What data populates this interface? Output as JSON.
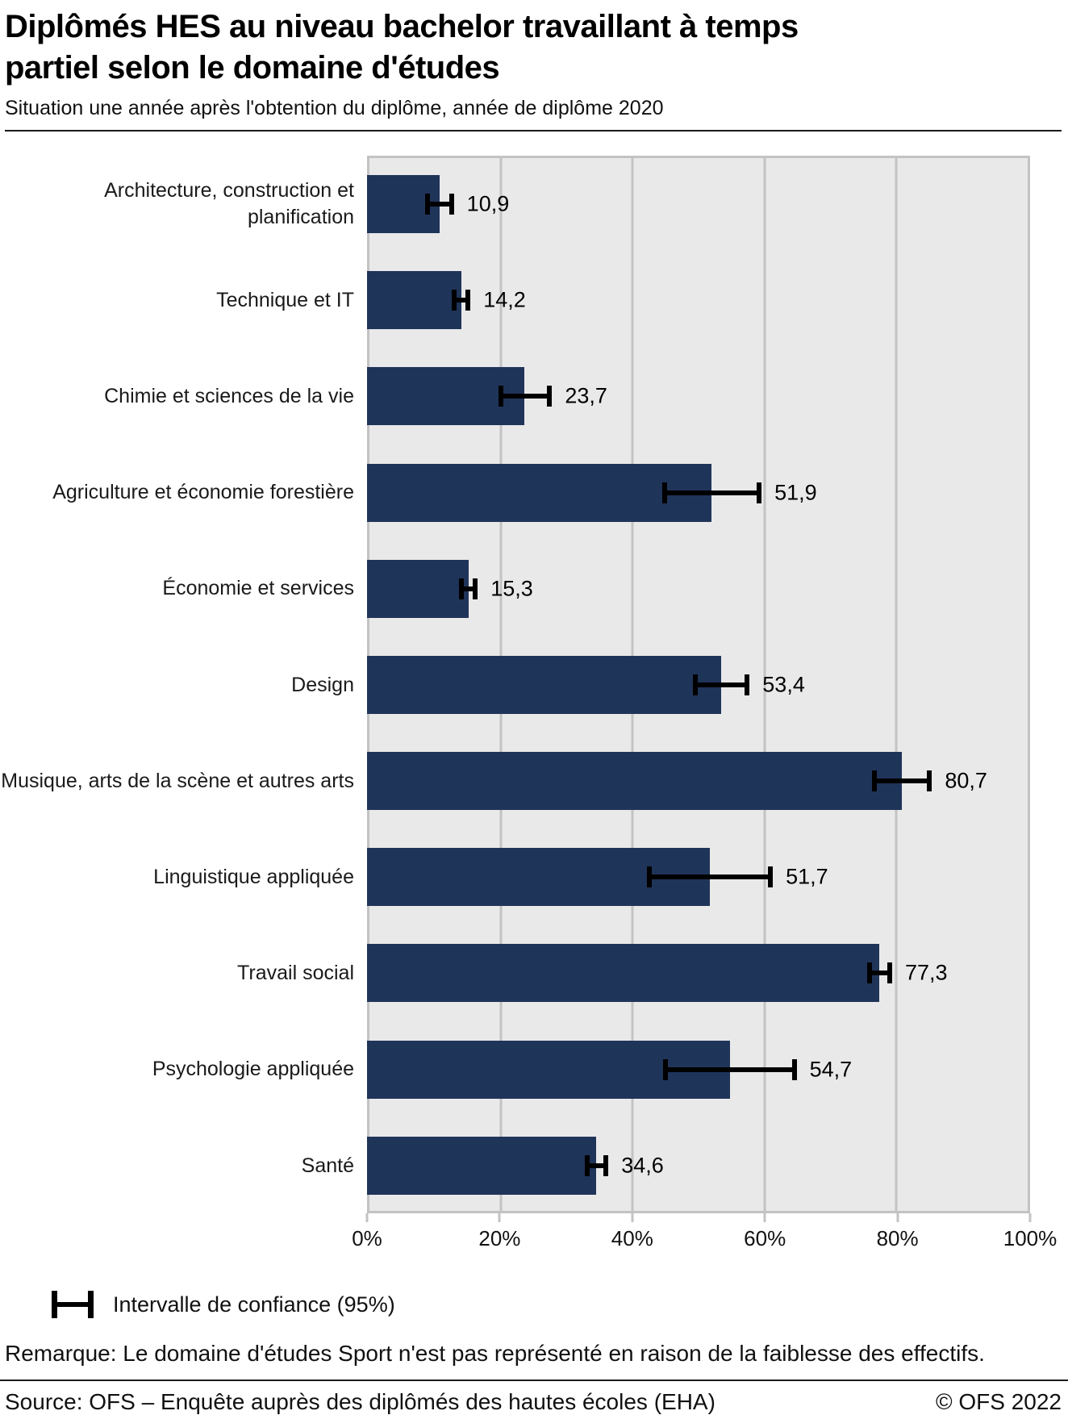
{
  "chart_data": {
    "type": "bar",
    "orientation": "horizontal",
    "title": "Diplômés HES au niveau bachelor travaillant à temps partiel selon le domaine d'études",
    "subtitle": "Situation une année après l'obtention du diplôme, année de diplôme 2020",
    "categories": [
      "Architecture, construction et planification",
      "Technique et IT",
      "Chimie et sciences de la vie",
      "Agriculture et économie forestière",
      "Économie et services",
      "Design",
      "Musique, arts de la scène et autres arts",
      "Linguistique appliquée",
      "Travail social",
      "Psychologie appliquée",
      "Santé"
    ],
    "values": [
      10.9,
      14.2,
      23.7,
      51.9,
      15.3,
      53.4,
      80.7,
      51.7,
      77.3,
      54.7,
      34.6
    ],
    "value_labels": [
      "10,9",
      "14,2",
      "23,7",
      "51,9",
      "15,3",
      "53,4",
      "80,7",
      "51,7",
      "77,3",
      "54,7",
      "34,6"
    ],
    "ci_low": [
      8.7,
      12.8,
      19.8,
      44.5,
      13.9,
      49.1,
      76.2,
      42.2,
      75.4,
      44.6,
      32.8
    ],
    "ci_high": [
      13.1,
      15.6,
      27.9,
      59.5,
      16.7,
      57.7,
      85.2,
      61.2,
      79.2,
      64.8,
      36.4
    ],
    "xlabel": "",
    "ylabel": "",
    "xlim": [
      0,
      100
    ],
    "x_ticks": [
      0,
      20,
      40,
      60,
      80,
      100
    ],
    "x_tick_labels": [
      "0%",
      "20%",
      "40%",
      "60%",
      "80%",
      "100%"
    ],
    "grid": "vertical",
    "legend_position": "bottom-left",
    "legend_label": "Intervalle de confiance (95%)",
    "note": "Remarque: Le domaine d'études Sport n'est pas représenté en raison de la faiblesse des effectifs.",
    "colors": {
      "bar": "#1f3459",
      "plot_background": "#e9e9e9",
      "grid": "#c3c3c3",
      "error_bar": "#000000"
    }
  },
  "footer": {
    "source": "Source: OFS – Enquête auprès des diplômés des hautes écoles (EHA)",
    "copyright": "© OFS 2022"
  }
}
